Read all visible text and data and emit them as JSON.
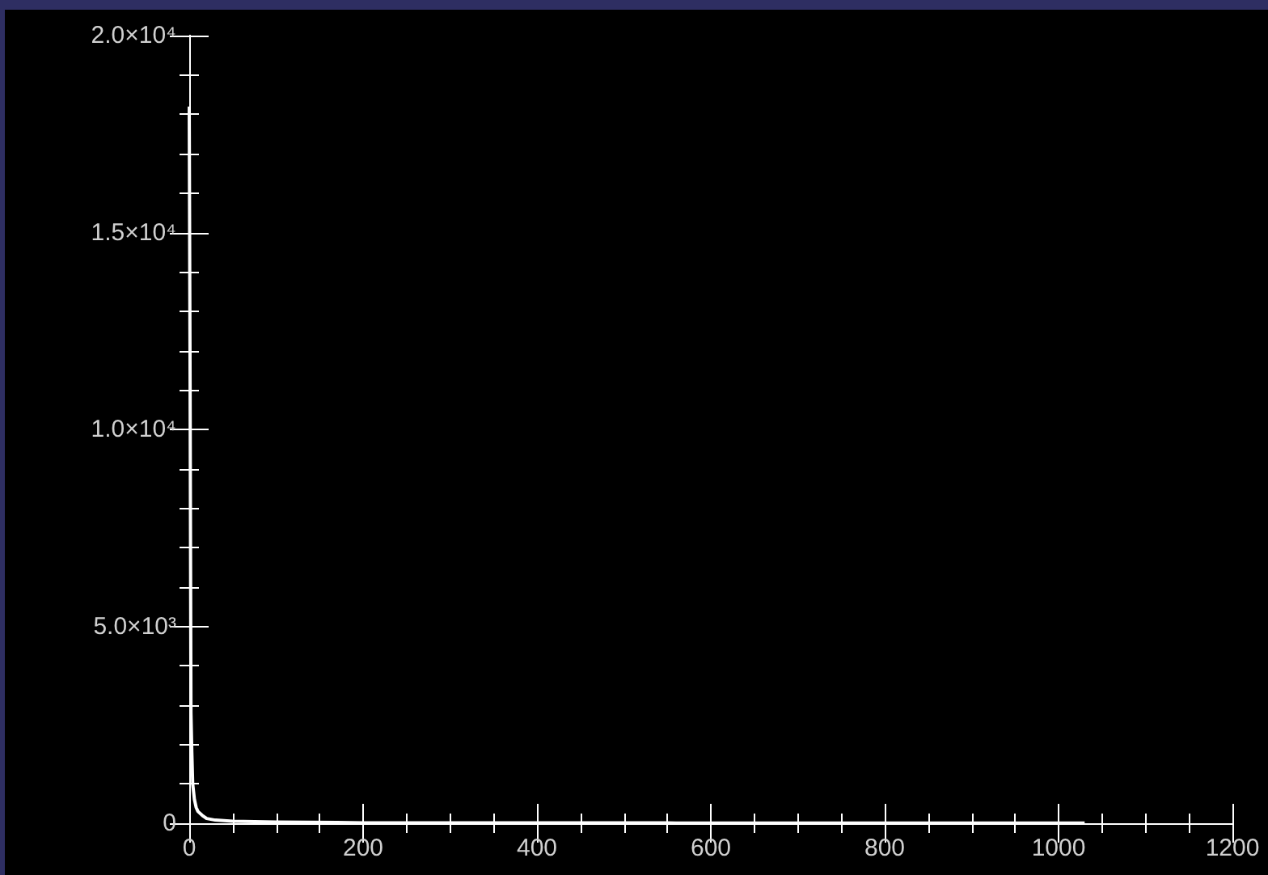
{
  "chart_data": {
    "type": "line",
    "x": [
      0,
      1,
      1,
      2,
      3,
      4,
      6,
      8,
      10,
      15,
      20,
      30,
      50,
      100,
      170,
      200,
      550,
      560,
      1030
    ],
    "series": [
      {
        "color": "#ffffff",
        "values": [
          18200,
          18200,
          11200,
          2800,
          1800,
          1000,
          600,
          400,
          300,
          200,
          120,
          80,
          50,
          30,
          20,
          10,
          8,
          5,
          5
        ]
      }
    ],
    "xlim": [
      0,
      1200
    ],
    "xticks": [
      0,
      200,
      400,
      600,
      800,
      1000,
      1200
    ],
    "ylim": [
      0,
      20000
    ],
    "yticks": [
      {
        "value": 0,
        "label": "0"
      },
      {
        "value": 5000,
        "label": "5.0×10³"
      },
      {
        "value": 10000,
        "label": "1.0×10⁴"
      },
      {
        "value": 15000,
        "label": "1.5×10⁴"
      },
      {
        "value": 20000,
        "label": "2.0×10⁴"
      }
    ],
    "grid": false,
    "marker": "none",
    "line_style": "solid"
  }
}
